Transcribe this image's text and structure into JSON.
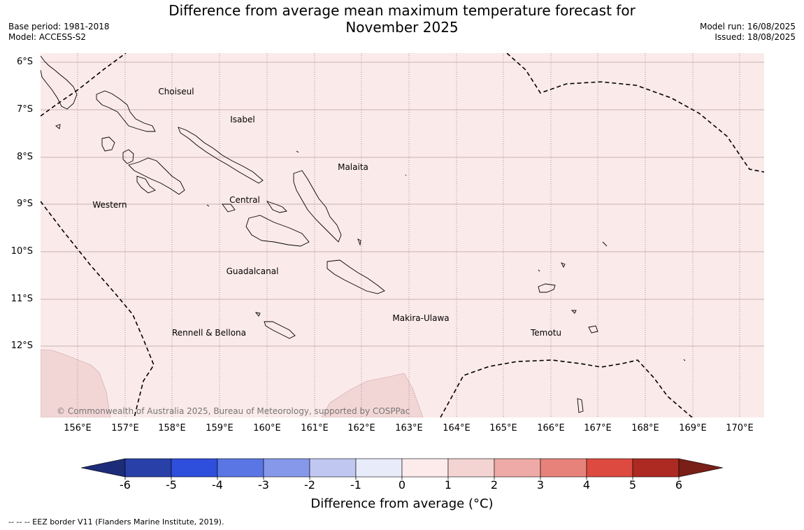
{
  "title_line1": "Difference from average mean maximum temperature forecast for",
  "title_line2": "November 2025",
  "meta_left": {
    "base_period": "Base period: 1981-2018",
    "model": "Model: ACCESS-S2"
  },
  "meta_right": {
    "model_run": "Model run: 16/08/2025",
    "issued": "Issued: 18/08/2025"
  },
  "lat_labels": [
    "6°S",
    "7°S",
    "8°S",
    "9°S",
    "10°S",
    "11°S",
    "12°S"
  ],
  "lon_labels": [
    "156°E",
    "157°E",
    "158°E",
    "159°E",
    "160°E",
    "161°E",
    "162°E",
    "163°E",
    "164°E",
    "165°E",
    "166°E",
    "167°E",
    "168°E",
    "169°E",
    "170°E"
  ],
  "place_labels": {
    "choiseul": "Choiseul",
    "isabel": "Isabel",
    "malaita": "Malaita",
    "western": "Western",
    "central": "Central",
    "guadalcanal": "Guadalcanal",
    "makira": "Makira-Ulawa",
    "temotu": "Temotu",
    "rennell": "Rennell & Bellona"
  },
  "copyright": "© Commonwealth of Australia 2025, Bureau of Meteorology, supported by COSPPac",
  "colorbar": {
    "ticks": [
      "-6",
      "-5",
      "-4",
      "-3",
      "-2",
      "-1",
      "0",
      "1",
      "2",
      "3",
      "4",
      "5",
      "6"
    ],
    "colors": [
      "#2840a8",
      "#2e4edc",
      "#5a76e4",
      "#8698ea",
      "#c0c8f2",
      "#e8ecfa",
      "#fcebea",
      "#f3d4d2",
      "#eeaaa6",
      "#e6827a",
      "#dc4a40",
      "#ac2a22"
    ],
    "under_color": "#1c2c78",
    "over_color": "#7a1e18",
    "label": "Difference from average (°C)"
  },
  "map_fill_color": "#fbeaea",
  "warm_patch_color": "#f2d6d5",
  "eez_note": "--  --  -- EEZ border V11 (Flanders Marine Institute, 2019)."
}
